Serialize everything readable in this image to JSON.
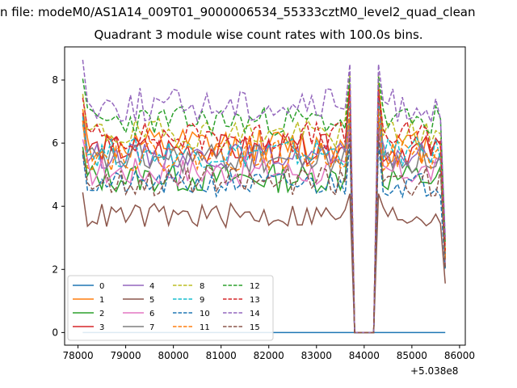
{
  "figure": {
    "suptitle": "n file: modeM0/AS1A14_009T01_9000006534_55333cztM0_level2_quad_clean",
    "title": "Quadrant 3 module wise count rates with 100.0s bins.",
    "x_offset_label": "+5.038e8"
  },
  "chart_data": {
    "type": "line",
    "title": "Quadrant 3 module wise count rates with 100.0s bins.",
    "xlabel": "",
    "ylabel": "",
    "x_offset": 503800000,
    "xlim": [
      77720,
      86120
    ],
    "ylim": [
      -0.4,
      9.05
    ],
    "xticks": [
      78000,
      79000,
      80000,
      81000,
      82000,
      83000,
      84000,
      85000,
      86000
    ],
    "xtick_labels": [
      "78000",
      "79000",
      "80000",
      "81000",
      "82000",
      "83000",
      "84000",
      "85000",
      "86000"
    ],
    "yticks": [
      0,
      2,
      4,
      6,
      8
    ],
    "ytick_labels": [
      "0",
      "2",
      "4",
      "6",
      "8"
    ],
    "grid": false,
    "legend": {
      "placement": "lower-left",
      "columns": 4
    },
    "x_start": 78100,
    "x_step": 100,
    "n_points": 77,
    "gap_range": [
      83800,
      84200
    ],
    "series": [
      {
        "name": "0",
        "color": "#1f77b4",
        "dash": "solid",
        "base": 0.0,
        "noise": 0.0,
        "spike": 0.0,
        "seed": 0
      },
      {
        "name": "1",
        "color": "#ff7f0e",
        "dash": "solid",
        "base": 5.9,
        "noise": 0.35,
        "spike": 7.8,
        "seed": 11
      },
      {
        "name": "2",
        "color": "#2ca02c",
        "dash": "solid",
        "base": 4.9,
        "noise": 0.3,
        "spike": 6.6,
        "seed": 12
      },
      {
        "name": "3",
        "color": "#d62728",
        "dash": "solid",
        "base": 5.8,
        "noise": 0.3,
        "spike": 7.9,
        "seed": 13
      },
      {
        "name": "4",
        "color": "#9467bd",
        "dash": "solid",
        "base": 5.6,
        "noise": 0.25,
        "spike": 6.5,
        "seed": 14
      },
      {
        "name": "5",
        "color": "#8c564b",
        "dash": "solid",
        "base": 3.7,
        "noise": 0.25,
        "spike": 4.4,
        "seed": 15
      },
      {
        "name": "6",
        "color": "#e377c2",
        "dash": "solid",
        "base": 5.1,
        "noise": 0.3,
        "spike": 6.4,
        "seed": 16
      },
      {
        "name": "7",
        "color": "#7f7f7f",
        "dash": "solid",
        "base": 5.5,
        "noise": 0.3,
        "spike": 6.8,
        "seed": 17
      },
      {
        "name": "8",
        "color": "#bcbd22",
        "dash": "dashed",
        "base": 6.3,
        "noise": 0.3,
        "spike": 8.2,
        "seed": 18
      },
      {
        "name": "9",
        "color": "#17becf",
        "dash": "dashed",
        "base": 5.7,
        "noise": 0.3,
        "spike": 7.4,
        "seed": 19
      },
      {
        "name": "10",
        "color": "#1f77b4",
        "dash": "dashed",
        "base": 4.7,
        "noise": 0.25,
        "spike": 6.0,
        "seed": 20
      },
      {
        "name": "11",
        "color": "#ff7f0e",
        "dash": "dashed",
        "base": 5.6,
        "noise": 0.3,
        "spike": 7.1,
        "seed": 21
      },
      {
        "name": "12",
        "color": "#2ca02c",
        "dash": "dashed",
        "base": 6.7,
        "noise": 0.3,
        "spike": 8.1,
        "seed": 22
      },
      {
        "name": "13",
        "color": "#d62728",
        "dash": "dashed",
        "base": 6.2,
        "noise": 0.3,
        "spike": 7.7,
        "seed": 23
      },
      {
        "name": "14",
        "color": "#9467bd",
        "dash": "dashed",
        "base": 7.2,
        "noise": 0.35,
        "spike": 8.5,
        "seed": 24
      },
      {
        "name": "15",
        "color": "#8c564b",
        "dash": "dashed",
        "base": 4.8,
        "noise": 0.3,
        "spike": 6.3,
        "seed": 25
      }
    ]
  }
}
